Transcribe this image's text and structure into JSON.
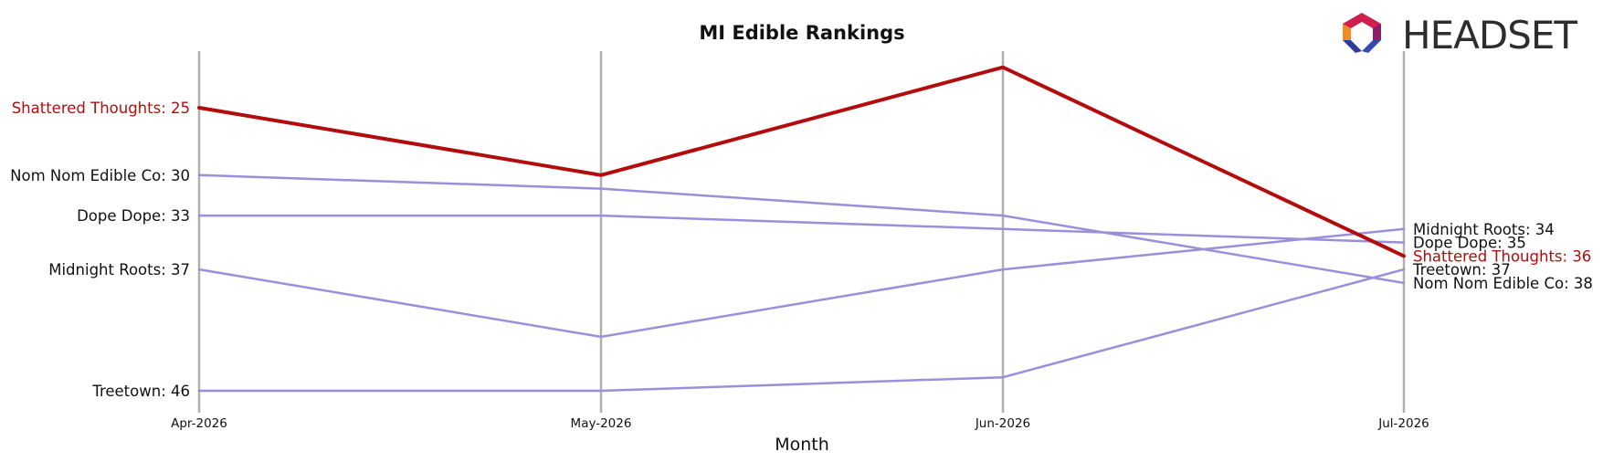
{
  "chart_data": {
    "type": "line",
    "title": "MI Edible Rankings",
    "xlabel": "Month",
    "ylabel": "",
    "categories": [
      "Apr-2026",
      "May-2026",
      "Jun-2026",
      "Jul-2026"
    ],
    "y_inverted": true,
    "ylim": [
      22,
      47
    ],
    "grid": "vertical lines at each month",
    "highlight_color": "#b30c0c",
    "other_color": "#9b8fdb",
    "series": [
      {
        "name": "Shattered Thoughts",
        "values": [
          25,
          30,
          22,
          36
        ],
        "highlight": true,
        "start_label": "Shattered Thoughts: 25",
        "end_label": "Shattered Thoughts: 36"
      },
      {
        "name": "Nom Nom Edible Co",
        "values": [
          30,
          31,
          33,
          38
        ],
        "highlight": false,
        "start_label": "Nom Nom Edible Co: 30",
        "end_label": "Nom Nom Edible Co: 38"
      },
      {
        "name": "Dope Dope",
        "values": [
          33,
          33,
          34,
          35
        ],
        "highlight": false,
        "start_label": "Dope Dope: 33",
        "end_label": "Dope Dope: 35"
      },
      {
        "name": "Midnight Roots",
        "values": [
          37,
          42,
          37,
          34
        ],
        "highlight": false,
        "start_label": "Midnight Roots: 37",
        "end_label": "Midnight Roots: 34"
      },
      {
        "name": "Treetown",
        "values": [
          46,
          46,
          45,
          37
        ],
        "highlight": false,
        "start_label": "Treetown: 46",
        "end_label": "Treetown: 37"
      }
    ]
  },
  "logo": {
    "text": "HEADSET",
    "icon": "headset-hexagon-logo-icon"
  }
}
